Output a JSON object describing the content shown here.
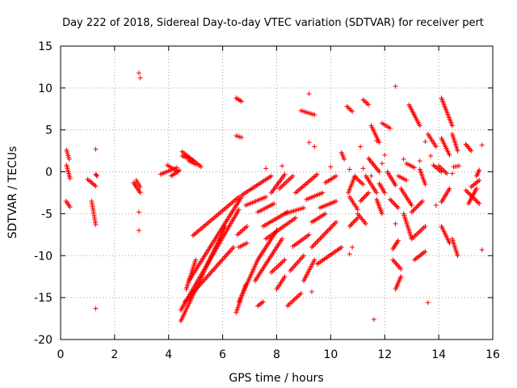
{
  "chart_data": {
    "type": "scatter",
    "title": "Day 222 of 2018, Sidereal Day-to-day VTEC variation (SDTVAR) for receiver pert",
    "xlabel": "GPS time / hours",
    "ylabel": "SDTVAR / TECUs",
    "xlim": [
      0,
      16
    ],
    "ylim": [
      -20,
      15
    ],
    "xticks": [
      0,
      2,
      4,
      6,
      8,
      10,
      12,
      14,
      16
    ],
    "yticks": [
      -20,
      -15,
      -10,
      -5,
      0,
      5,
      10,
      15
    ],
    "grid": true,
    "marker": "+",
    "color": "#ff0000",
    "series": [
      {
        "name": "SDTVAR",
        "segments": [
          [
            0.22,
            2.6,
            0.32,
            1.5
          ],
          [
            0.22,
            0.8,
            0.35,
            -0.8
          ],
          [
            0.2,
            -3.5,
            0.35,
            -4.2
          ],
          [
            1.0,
            -0.9,
            1.3,
            -1.7
          ],
          [
            1.15,
            -3.5,
            1.3,
            -6.3
          ],
          [
            1.3,
            -0.3,
            1.35,
            -0.5
          ],
          [
            2.7,
            -1.3,
            2.95,
            -2.5
          ],
          [
            2.8,
            -1.0,
            2.95,
            -1.8
          ],
          [
            3.7,
            -0.3,
            4.3,
            0.5
          ],
          [
            3.95,
            0.8,
            4.35,
            0.0
          ],
          [
            4.1,
            -0.5,
            4.4,
            0.2
          ],
          [
            4.5,
            2.4,
            5.2,
            0.6
          ],
          [
            4.5,
            1.9,
            4.9,
            1.4
          ],
          [
            4.75,
            1.3,
            5.0,
            0.9
          ],
          [
            6.5,
            8.8,
            6.7,
            8.4
          ],
          [
            6.5,
            4.3,
            6.7,
            4.1
          ],
          [
            4.45,
            -17.8,
            6.1,
            -6.5
          ],
          [
            4.45,
            -16.5,
            6.6,
            -4.5
          ],
          [
            4.6,
            -15.5,
            6.4,
            -9.0
          ],
          [
            4.65,
            -14.0,
            5.0,
            -10.5
          ],
          [
            4.75,
            -13.0,
            6.7,
            -3.0
          ],
          [
            4.9,
            -7.6,
            6.6,
            -3.0
          ],
          [
            6.5,
            -16.8,
            6.85,
            -13.5
          ],
          [
            6.6,
            -15.5,
            7.3,
            -10.5
          ],
          [
            6.6,
            -9.0,
            6.9,
            -8.5
          ],
          [
            6.55,
            -7.5,
            6.9,
            -6.5
          ],
          [
            6.85,
            -4.0,
            7.6,
            -3.0
          ],
          [
            6.7,
            -2.8,
            7.8,
            -0.5
          ],
          [
            7.2,
            -13.0,
            8.2,
            -8.0
          ],
          [
            7.3,
            -10.5,
            8.0,
            -7.0
          ],
          [
            7.3,
            -16.0,
            7.5,
            -15.5
          ],
          [
            7.3,
            -4.8,
            7.9,
            -3.8
          ],
          [
            7.8,
            -2.5,
            8.3,
            -0.3
          ],
          [
            7.6,
            -8.0,
            8.7,
            -5.5
          ],
          [
            7.8,
            -12.0,
            8.3,
            -10.5
          ],
          [
            7.5,
            -6.5,
            8.4,
            -4.8
          ],
          [
            8.0,
            -14.0,
            8.3,
            -12.5
          ],
          [
            8.4,
            -16.0,
            8.9,
            -14.5
          ],
          [
            8.5,
            -11.8,
            9.0,
            -10.0
          ],
          [
            8.1,
            -2.0,
            8.6,
            -0.5
          ],
          [
            8.3,
            -5.0,
            9.0,
            -4.3
          ],
          [
            8.7,
            -2.5,
            9.5,
            -0.3
          ],
          [
            9.0,
            -13.0,
            9.4,
            -10.5
          ],
          [
            8.6,
            -8.9,
            9.2,
            -7.5
          ],
          [
            8.9,
            7.3,
            9.4,
            6.8
          ],
          [
            9.1,
            -3.3,
            9.7,
            -2.5
          ],
          [
            9.5,
            -11.0,
            10.4,
            -9.0
          ],
          [
            9.3,
            -9.0,
            10.2,
            -6.0
          ],
          [
            9.6,
            -4.3,
            10.2,
            -3.5
          ],
          [
            9.8,
            -1.3,
            10.2,
            -0.5
          ],
          [
            9.3,
            -6.0,
            9.8,
            -5.0
          ],
          [
            10.4,
            2.3,
            10.5,
            1.5
          ],
          [
            10.6,
            7.8,
            10.8,
            7.2
          ],
          [
            10.65,
            -2.5,
            10.9,
            -0.5
          ],
          [
            10.7,
            -6.5,
            11.0,
            -5.5
          ],
          [
            10.7,
            -3.0,
            11.0,
            -4.5
          ],
          [
            10.9,
            -0.6,
            11.2,
            -1.5
          ],
          [
            11.0,
            -5.0,
            11.3,
            -6.2
          ],
          [
            11.2,
            8.6,
            11.4,
            8.0
          ],
          [
            11.1,
            -3.5,
            11.4,
            -2.5
          ],
          [
            11.4,
            1.6,
            11.8,
            0.0
          ],
          [
            11.5,
            5.5,
            11.8,
            3.5
          ],
          [
            11.3,
            -0.5,
            11.7,
            -2.5
          ],
          [
            11.7,
            -3.3,
            11.9,
            -5.0
          ],
          [
            11.9,
            5.8,
            12.2,
            5.2
          ],
          [
            11.8,
            -1.4,
            12.0,
            -2.5
          ],
          [
            12.1,
            0.0,
            12.4,
            -1.6
          ],
          [
            12.2,
            -3.3,
            12.5,
            -4.3
          ],
          [
            12.3,
            -9.2,
            12.5,
            -8.2
          ],
          [
            12.3,
            -10.5,
            12.6,
            -11.6
          ],
          [
            12.4,
            -14.0,
            12.6,
            -12.5
          ],
          [
            12.5,
            -0.5,
            12.8,
            -1.0
          ],
          [
            12.6,
            -2.0,
            13.0,
            -4.0
          ],
          [
            12.7,
            -5.0,
            13.0,
            -8.0
          ],
          [
            12.9,
            8.0,
            13.3,
            5.5
          ],
          [
            12.8,
            1.0,
            13.1,
            0.5
          ],
          [
            13.0,
            -4.8,
            13.4,
            -3.5
          ],
          [
            13.0,
            -8.0,
            13.5,
            -6.5
          ],
          [
            13.1,
            -10.5,
            13.5,
            -9.5
          ],
          [
            13.3,
            0.3,
            13.5,
            -1.5
          ],
          [
            13.6,
            4.5,
            13.9,
            3.0
          ],
          [
            13.8,
            0.8,
            14.1,
            0.0
          ],
          [
            14.1,
            8.8,
            14.5,
            5.5
          ],
          [
            14.0,
            0.7,
            14.3,
            -0.2
          ],
          [
            14.1,
            4.0,
            14.4,
            2.0
          ],
          [
            14.1,
            -3.6,
            14.4,
            -2.0
          ],
          [
            14.1,
            -6.5,
            14.4,
            -8.5
          ],
          [
            14.5,
            4.5,
            14.7,
            2.5
          ],
          [
            14.5,
            -8.0,
            14.7,
            -10.0
          ],
          [
            14.55,
            0.6,
            14.75,
            0.7
          ],
          [
            15.0,
            3.3,
            15.2,
            2.5
          ],
          [
            15.1,
            -3.8,
            15.4,
            -2.0
          ],
          [
            15.2,
            -1.8,
            15.5,
            -1.0
          ],
          [
            15.0,
            -2.2,
            15.5,
            -3.8
          ],
          [
            15.4,
            -0.5,
            15.5,
            0.2
          ]
        ],
        "points": [
          [
            1.3,
            2.7
          ],
          [
            1.3,
            -16.3
          ],
          [
            2.9,
            11.8
          ],
          [
            2.95,
            11.2
          ],
          [
            2.9,
            -4.8
          ],
          [
            2.9,
            -7.0
          ],
          [
            9.2,
            9.3
          ],
          [
            9.2,
            3.5
          ],
          [
            9.4,
            3.0
          ],
          [
            9.3,
            -14.3
          ],
          [
            10.0,
            0.6
          ],
          [
            10.7,
            0.3
          ],
          [
            11.2,
            0.4
          ],
          [
            11.6,
            -17.6
          ],
          [
            12.0,
            2.0
          ],
          [
            12.4,
            10.2
          ],
          [
            12.4,
            -6.2
          ],
          [
            13.6,
            -15.6
          ],
          [
            13.9,
            -4.0
          ],
          [
            14.5,
            -0.2
          ],
          [
            15.6,
            3.2
          ],
          [
            15.6,
            -9.3
          ],
          [
            10.7,
            -9.8
          ],
          [
            10.8,
            -9.0
          ],
          [
            8.2,
            0.7
          ],
          [
            7.6,
            0.4
          ],
          [
            11.1,
            3.0
          ],
          [
            11.9,
            1.0
          ],
          [
            13.7,
            1.9
          ],
          [
            13.5,
            3.6
          ],
          [
            11.7,
            3.7
          ],
          [
            11.5,
            -0.5
          ],
          [
            12.7,
            1.5
          ],
          [
            13.3,
            1.3
          ]
        ]
      }
    ]
  }
}
